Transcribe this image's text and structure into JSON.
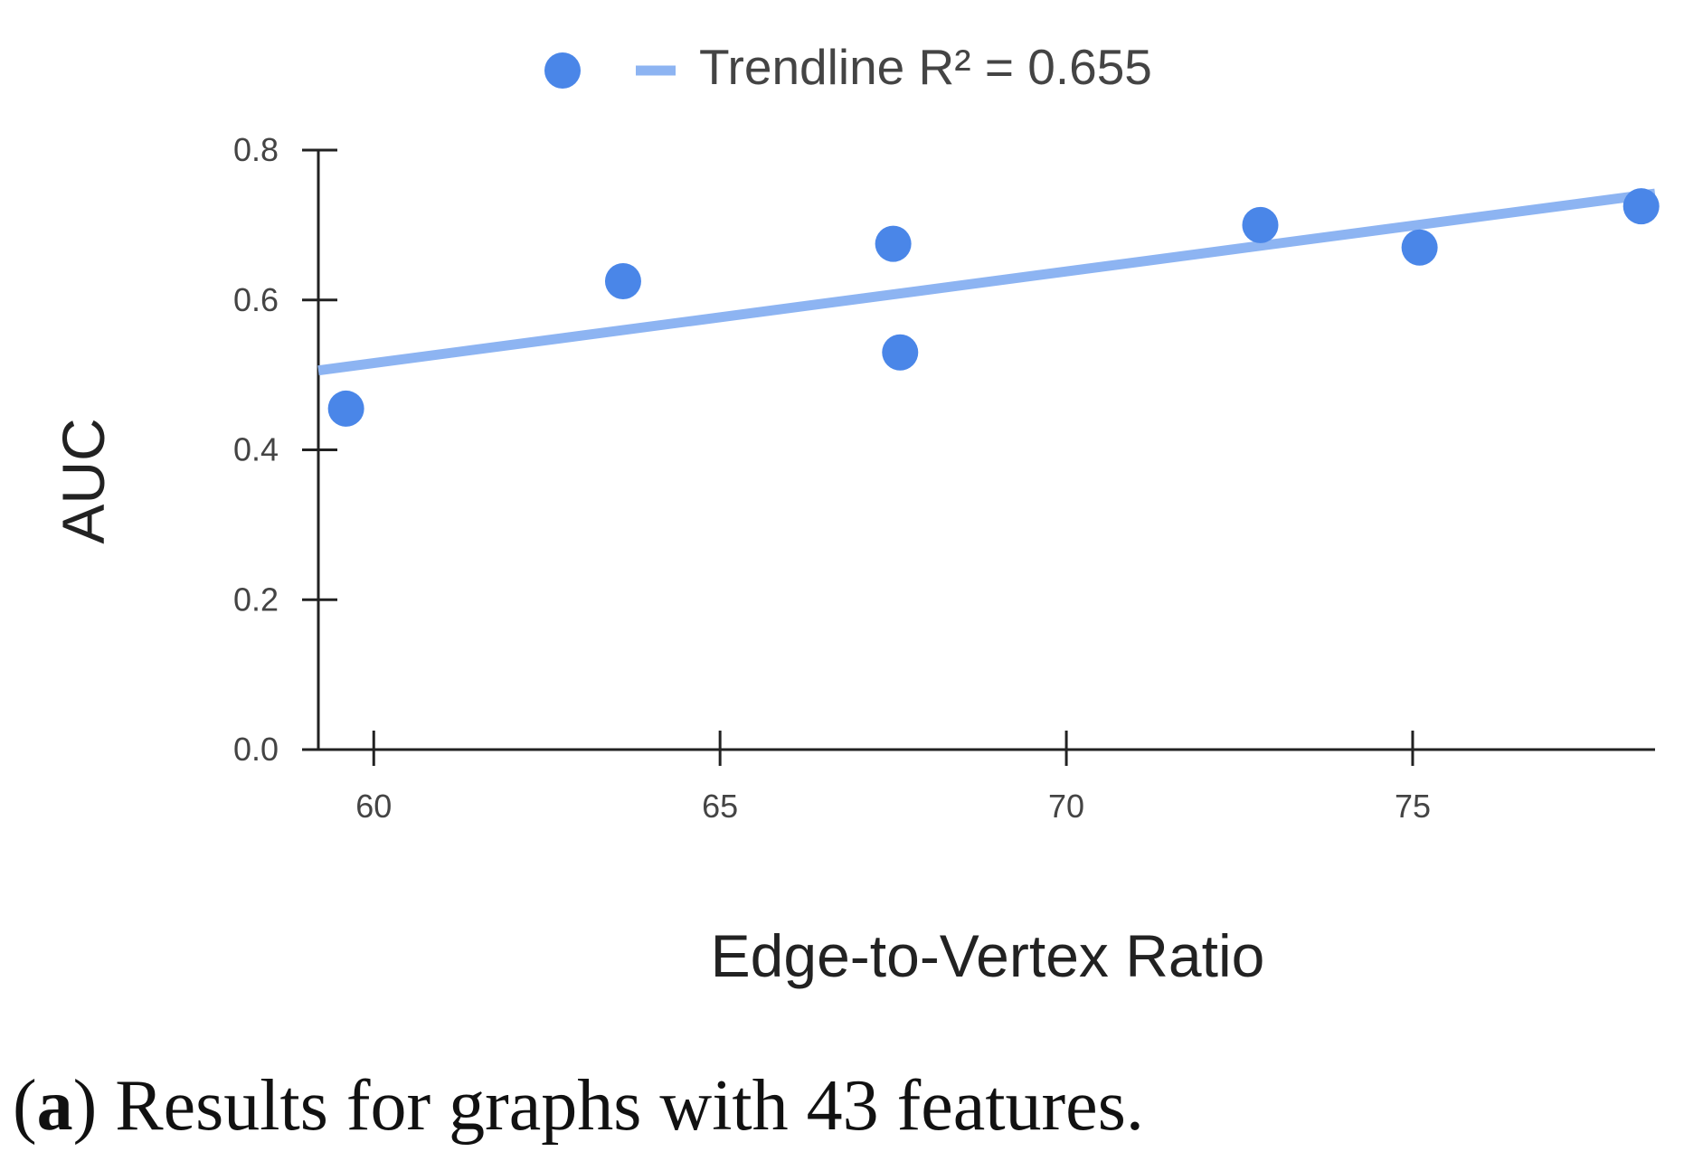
{
  "chart_data": {
    "type": "scatter",
    "xlabel": "Edge-to-Vertex Ratio",
    "ylabel": "AUC",
    "xlim": [
      59.2,
      78.5
    ],
    "ylim": [
      0,
      0.8
    ],
    "x_ticks": [
      60,
      65,
      70,
      75
    ],
    "y_ticks": [
      0.0,
      0.2,
      0.4,
      0.6,
      0.8
    ],
    "x_tick_labels": [
      "60",
      "65",
      "70",
      "75"
    ],
    "y_tick_labels": [
      "0.0",
      "0.2",
      "0.4",
      "0.6",
      "0.8"
    ],
    "series": [
      {
        "x": [
          59.6,
          63.6,
          67.5,
          67.6,
          72.8,
          75.1,
          78.3
        ],
        "y": [
          0.455,
          0.625,
          0.675,
          0.53,
          0.7,
          0.67,
          0.725
        ]
      }
    ],
    "trendline": {
      "label": "Trendline R² = 0.655",
      "x": [
        59.2,
        78.5
      ],
      "y": [
        0.506,
        0.742
      ]
    },
    "legend_position": "top-center",
    "grid": false
  },
  "colors": {
    "points": "#4a86e8",
    "trendline": "#8db4f2",
    "axis": "#222222"
  },
  "caption": {
    "label": "a",
    "text": "Results for graphs with 43 features."
  }
}
